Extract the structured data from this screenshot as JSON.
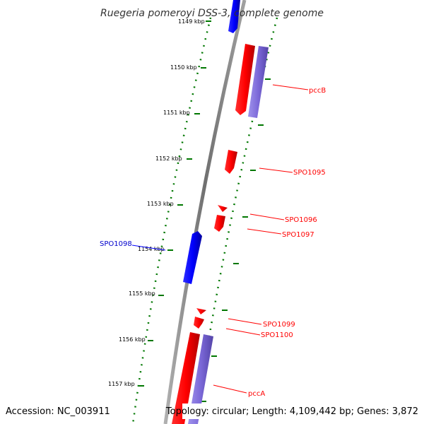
{
  "title": "Ruegeria pomeroyi DSS-3, complete genome",
  "accession": "Accession: NC_003911",
  "summary": "Topology: circular; Length: 4,109,442 bp; Genes: 3,872",
  "colors": {
    "forward": "#ff0000",
    "reverse": "#0000ff",
    "cds": "#7b68d8",
    "ticks": "#007700",
    "backbone": "#888888"
  },
  "ticks": [
    {
      "kbp": 1149,
      "label": "1149 kbp"
    },
    {
      "kbp": 1150,
      "label": "1150 kbp"
    },
    {
      "kbp": 1151,
      "label": "1151 kbp"
    },
    {
      "kbp": 1152,
      "label": "1152 kbp"
    },
    {
      "kbp": 1153,
      "label": "1153 kbp"
    },
    {
      "kbp": 1154,
      "label": "1154 kbp"
    },
    {
      "kbp": 1155,
      "label": "1155 kbp"
    },
    {
      "kbp": 1156,
      "label": "1156 kbp"
    },
    {
      "kbp": 1157,
      "label": "1157 kbp"
    }
  ],
  "genes": [
    {
      "name": "pccB",
      "strand": "+"
    },
    {
      "name": "SPO1095",
      "strand": "+"
    },
    {
      "name": "SPO1096",
      "strand": "+"
    },
    {
      "name": "SPO1097",
      "strand": "+"
    },
    {
      "name": "SPO1098",
      "strand": "-"
    },
    {
      "name": "SPO1099",
      "strand": "+"
    },
    {
      "name": "SPO1100",
      "strand": "+"
    },
    {
      "name": "pccA",
      "strand": "+"
    }
  ]
}
